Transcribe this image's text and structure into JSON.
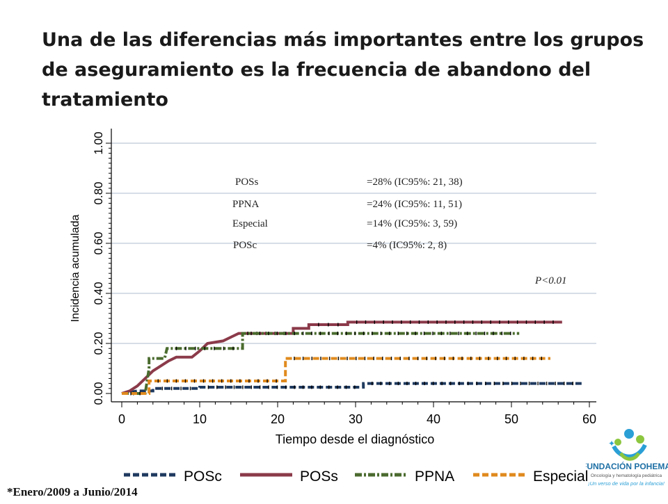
{
  "slide": {
    "title": "Una de las diferencias más importantes entre los grupos de aseguramiento es la frecuencia de abandono del tratamiento",
    "footnote": "*Enero/2009 a Junio/2014"
  },
  "logo": {
    "name": "FUNDACIÓN POHEMA",
    "subtitle": "Oncología y hematología pediátrica",
    "tagline": "¡Un verso de vida por la infancia!"
  },
  "chart_data": {
    "type": "line",
    "xlabel": "Tiempo desde el diagnóstico",
    "ylabel": "Incidencia acumulada",
    "xlim": [
      0,
      60
    ],
    "ylim": [
      0,
      1
    ],
    "x_ticks": [
      "0",
      "10",
      "20",
      "30",
      "40",
      "50",
      "60"
    ],
    "y_ticks": [
      "0.00",
      "0.20",
      "0.40",
      "0.60",
      "0.80",
      "1.00"
    ],
    "grid": "horizontal",
    "legend_position": "bottom",
    "series": [
      {
        "name": "POSc",
        "color": "#1f3a5f",
        "style": "dash",
        "points": [
          [
            0,
            0
          ],
          [
            2,
            0.01
          ],
          [
            4,
            0.01
          ],
          [
            4,
            0.02
          ],
          [
            10,
            0.02
          ],
          [
            10,
            0.025
          ],
          [
            31,
            0.025
          ],
          [
            31,
            0.04
          ],
          [
            59,
            0.04
          ]
        ]
      },
      {
        "name": "POSs",
        "color": "#8b3a4a",
        "style": "solid",
        "points": [
          [
            0,
            0
          ],
          [
            1,
            0.01
          ],
          [
            2,
            0.03
          ],
          [
            3,
            0.06
          ],
          [
            4,
            0.09
          ],
          [
            5,
            0.11
          ],
          [
            6,
            0.13
          ],
          [
            7,
            0.145
          ],
          [
            9,
            0.145
          ],
          [
            10,
            0.17
          ],
          [
            11,
            0.2
          ],
          [
            13,
            0.21
          ],
          [
            14,
            0.225
          ],
          [
            15,
            0.24
          ],
          [
            22,
            0.24
          ],
          [
            22,
            0.26
          ],
          [
            24,
            0.26
          ],
          [
            24,
            0.275
          ],
          [
            29,
            0.275
          ],
          [
            29,
            0.285
          ],
          [
            56.5,
            0.285
          ]
        ]
      },
      {
        "name": "PPNA",
        "color": "#4a6b2e",
        "style": "dashdot",
        "points": [
          [
            0,
            0
          ],
          [
            3,
            0
          ],
          [
            3.5,
            0.1
          ],
          [
            3.5,
            0.14
          ],
          [
            5.5,
            0.14
          ],
          [
            5.8,
            0.18
          ],
          [
            15.5,
            0.18
          ],
          [
            15.5,
            0.24
          ],
          [
            51,
            0.24
          ]
        ]
      },
      {
        "name": "Especial",
        "color": "#e08a1e",
        "style": "dash",
        "points": [
          [
            0,
            0
          ],
          [
            3.5,
            0
          ],
          [
            3.5,
            0.05
          ],
          [
            21,
            0.05
          ],
          [
            21,
            0.14
          ],
          [
            55,
            0.14
          ]
        ]
      }
    ],
    "annotations": [
      {
        "group": "POSs",
        "value": "=28% (IC95%: 21, 38)"
      },
      {
        "group": "PPNA",
        "value": "=24% (IC95%: 11, 51)"
      },
      {
        "group": "Especial",
        "value": "=14% (IC95%: 3, 59)"
      },
      {
        "group": "POSc",
        "value": "=4%    (IC95%: 2, 8)"
      }
    ],
    "pvalue": "P<0.01"
  }
}
